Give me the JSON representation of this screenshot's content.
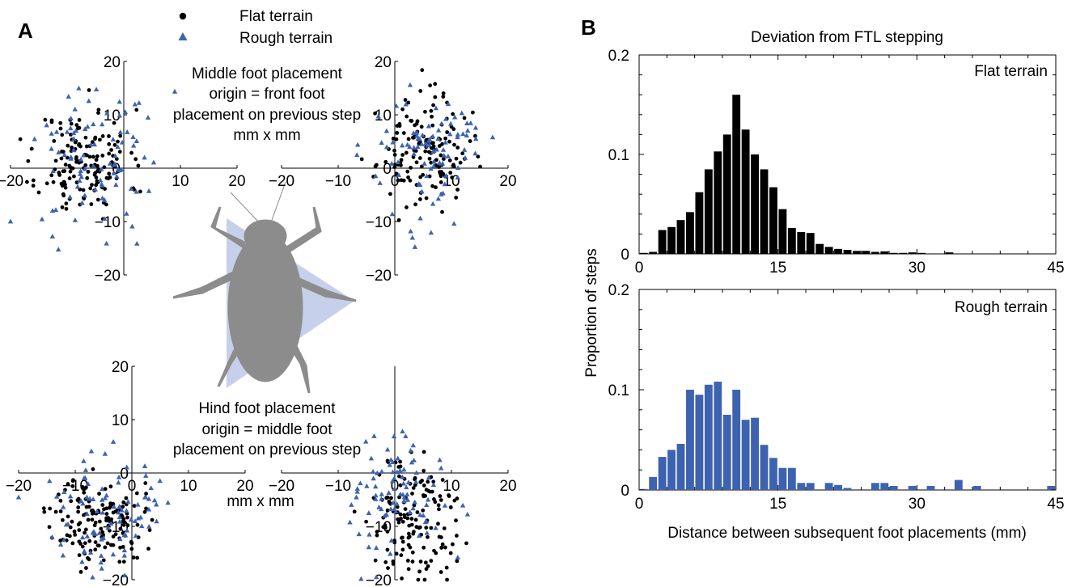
{
  "panel_labels": {
    "a": "A",
    "b": "B"
  },
  "legend": [
    {
      "label": "Flat terrain",
      "marker": "circle",
      "color": "#000000"
    },
    {
      "label": "Rough terrain",
      "marker": "triangle",
      "color": "#3d63b0"
    }
  ],
  "annotations": {
    "middle": [
      "Middle foot placement",
      "origin = front foot",
      "placement on previous step",
      "mm x mm"
    ],
    "hind": [
      "Hind foot placement",
      "origin = middle foot",
      "placement on previous step"
    ],
    "units": "mm x mm"
  },
  "colors": {
    "flat": "#000000",
    "rough": "#3d63b0",
    "insect": "#8c8c8c",
    "support_triangle": "#b8c4e6"
  },
  "chart_data": [
    {
      "type": "scatter",
      "panel": "A",
      "subplot": "middle-left",
      "xlim": [
        -20,
        20
      ],
      "ylim": [
        -20,
        20
      ],
      "xticks": [
        "-20",
        "10",
        "20"
      ],
      "yticks": [
        "20",
        "10",
        "0",
        "-10",
        "-20"
      ],
      "series": [
        {
          "name": "Flat terrain",
          "center": [
            -7,
            1
          ],
          "spread": [
            4,
            5
          ],
          "count": 150
        },
        {
          "name": "Rough terrain",
          "center": [
            -5,
            2
          ],
          "spread": [
            6,
            7
          ],
          "count": 90
        }
      ]
    },
    {
      "type": "scatter",
      "panel": "A",
      "subplot": "middle-right",
      "xlim": [
        -20,
        20
      ],
      "ylim": [
        -20,
        20
      ],
      "xticks": [
        "-20",
        "-10",
        "0",
        "10",
        "20"
      ],
      "yticks": [
        "20",
        "10",
        "0",
        "-10",
        "-20"
      ],
      "series": [
        {
          "name": "Flat terrain",
          "center": [
            5,
            3
          ],
          "spread": [
            4,
            5
          ],
          "count": 150
        },
        {
          "name": "Rough terrain",
          "center": [
            6,
            3
          ],
          "spread": [
            5,
            6
          ],
          "count": 90
        }
      ]
    },
    {
      "type": "scatter",
      "panel": "A",
      "subplot": "hind-left",
      "xlim": [
        -20,
        20
      ],
      "ylim": [
        -20,
        20
      ],
      "xticks": [
        "-20",
        "-10",
        "0",
        "10",
        "20"
      ],
      "yticks": [
        "20",
        "10",
        "0",
        "-10",
        "-20"
      ],
      "series": [
        {
          "name": "Flat terrain",
          "center": [
            -6,
            -9
          ],
          "spread": [
            4,
            4
          ],
          "count": 150
        },
        {
          "name": "Rough terrain",
          "center": [
            -5,
            -7
          ],
          "spread": [
            5,
            6
          ],
          "count": 90
        }
      ]
    },
    {
      "type": "scatter",
      "panel": "A",
      "subplot": "hind-right",
      "xlim": [
        -20,
        20
      ],
      "ylim": [
        -20,
        20
      ],
      "xticks": [
        "-20",
        "-10",
        "0",
        "10",
        "20"
      ],
      "yticks": [
        "-10",
        "-20"
      ],
      "series": [
        {
          "name": "Flat terrain",
          "center": [
            3,
            -9
          ],
          "spread": [
            4,
            6
          ],
          "count": 150
        },
        {
          "name": "Rough terrain",
          "center": [
            1,
            -5
          ],
          "spread": [
            5,
            6
          ],
          "count": 90
        }
      ]
    },
    {
      "type": "bar",
      "panel": "B",
      "title": "Deviation from FTL stepping",
      "label": "Flat terrain",
      "bin_width": 1,
      "xlim": [
        0,
        45
      ],
      "ylim": [
        0,
        0.2
      ],
      "xticks": [
        0,
        15,
        30,
        45
      ],
      "yticks": [
        0,
        0.1,
        0.2
      ],
      "ylabel": "Proportion of steps",
      "values": [
        0.001,
        0.002,
        0.024,
        0.027,
        0.034,
        0.042,
        0.062,
        0.085,
        0.103,
        0.12,
        0.16,
        0.125,
        0.1,
        0.085,
        0.067,
        0.045,
        0.026,
        0.022,
        0.021,
        0.01,
        0.007,
        0.005,
        0.004,
        0.003,
        0.003,
        0.002,
        0.0025,
        0.001,
        0.001,
        0.0015,
        0.001,
        0,
        0,
        0.0015,
        0,
        0,
        0,
        0,
        0,
        0,
        0,
        0,
        0,
        0,
        0
      ]
    },
    {
      "type": "bar",
      "panel": "B",
      "label": "Rough terrain",
      "bin_width": 1,
      "xlim": [
        0,
        45
      ],
      "ylim": [
        0,
        0.2
      ],
      "xticks": [
        0,
        15,
        30,
        45
      ],
      "yticks": [
        0,
        0.1,
        0.2
      ],
      "xlabel": "Distance between subsequent foot placements (mm)",
      "values": [
        0.001,
        0.013,
        0.033,
        0.04,
        0.046,
        0.1,
        0.095,
        0.105,
        0.108,
        0.075,
        0.1,
        0.07,
        0.072,
        0.045,
        0.032,
        0.022,
        0.022,
        0.007,
        0.007,
        0.0,
        0.007,
        0.005,
        0.002,
        0.0,
        0.0,
        0.007,
        0.007,
        0.004,
        0.0,
        0.004,
        0.0,
        0.004,
        0.0,
        0.0,
        0.01,
        0.0,
        0.004,
        0.0,
        0,
        0,
        0,
        0,
        0,
        0,
        0.004
      ]
    }
  ]
}
